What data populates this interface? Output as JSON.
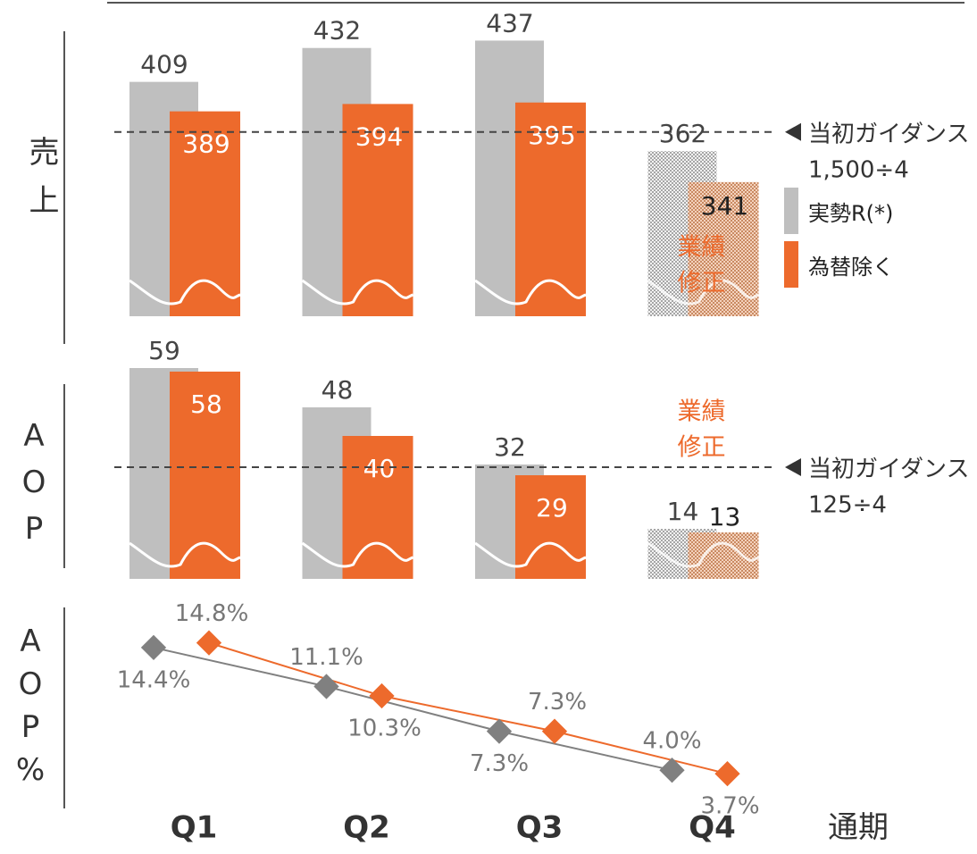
{
  "chart_data": [
    {
      "type": "bar",
      "ylabel": "売上",
      "ylim": [
        250,
        450
      ],
      "series": [
        {
          "name": "実勢R(*)",
          "color": "#bfbfbf",
          "values": [
            409,
            432,
            437,
            362,
            null
          ]
        },
        {
          "name": "為替除く",
          "color": "#ed6a2c",
          "values": [
            389,
            394,
            395,
            341,
            null
          ]
        }
      ],
      "hatched": [
        false,
        false,
        false,
        true,
        false
      ],
      "guidance": {
        "value": 375,
        "label": "当初ガイダンス",
        "formula": "1,500÷4"
      },
      "annotation": [
        "業績",
        "修正"
      ]
    },
    {
      "type": "bar",
      "ylabel": "AOP",
      "ylim": [
        0,
        60
      ],
      "series": [
        {
          "color": "#bfbfbf",
          "values": [
            59,
            48,
            32,
            14,
            null
          ]
        },
        {
          "color": "#ed6a2c",
          "values": [
            58,
            40,
            29,
            13,
            null
          ]
        }
      ],
      "hatched": [
        false,
        false,
        false,
        true,
        false
      ],
      "guidance": {
        "value": 31.25,
        "label": "当初ガイダンス",
        "formula": "125÷4"
      },
      "annotation": [
        "業績",
        "修正"
      ]
    },
    {
      "type": "line",
      "ylabel": "AOP%",
      "ylim": [
        0,
        15
      ],
      "categories": [
        "Q1",
        "Q2",
        "Q3",
        "Q4",
        "通期"
      ],
      "series": [
        {
          "color": "#808080",
          "values": [
            14.4,
            11.1,
            7.3,
            4.0,
            null
          ],
          "value_labels": [
            "14.4%",
            "11.1%",
            "7.3%",
            "4.0%",
            null
          ]
        },
        {
          "color": "#ed6a2c",
          "values": [
            14.8,
            10.3,
            7.3,
            3.7,
            null
          ],
          "value_labels": [
            "14.8%",
            "10.3%",
            "7.3%",
            "3.7%",
            null
          ]
        }
      ]
    }
  ]
}
